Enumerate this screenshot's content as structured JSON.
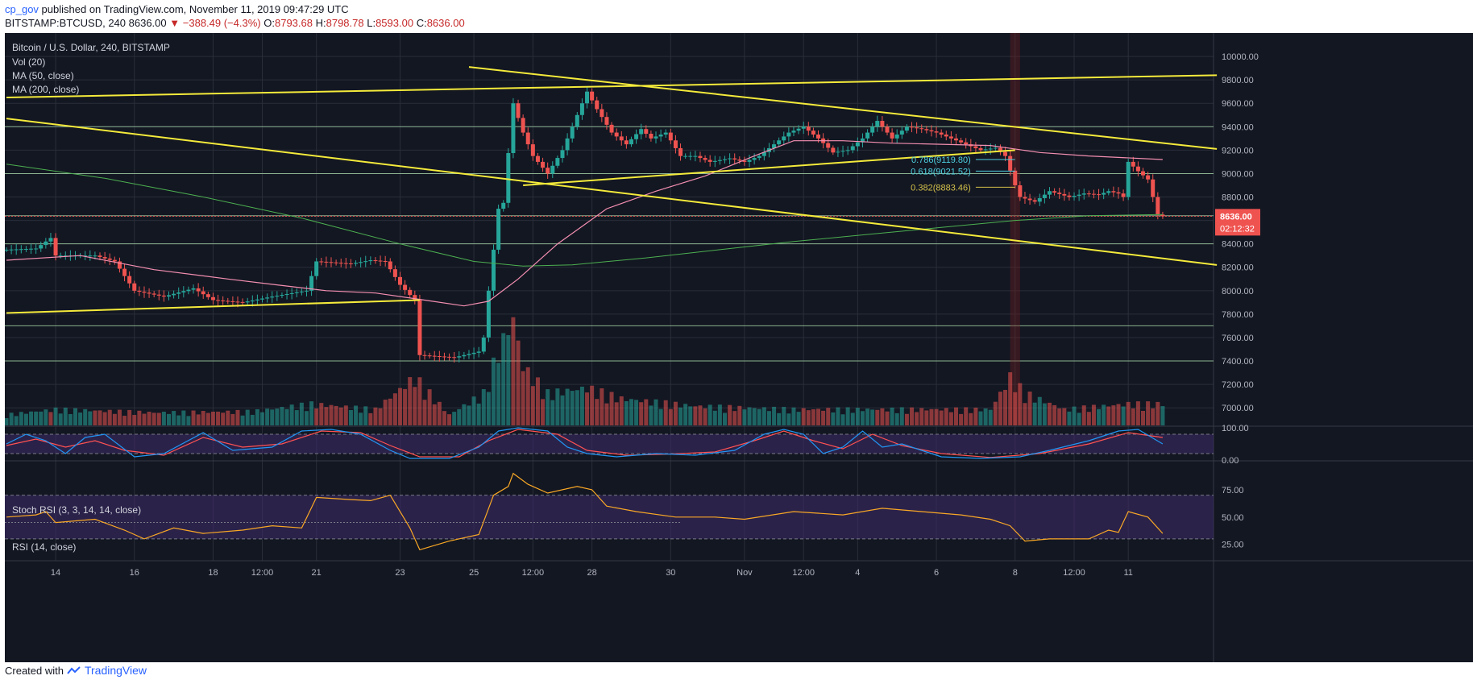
{
  "header": {
    "user": "cp_gov",
    "published": "published on TradingView.com, November 11, 2019 09:47:29 UTC"
  },
  "quote": {
    "symbol": "BITSTAMP:BTCUSD, 240",
    "last": "8636.00",
    "arrow": "▼",
    "change": "−388.49 (−4.3%)",
    "o_label": "O:",
    "o": "8793.68",
    "h_label": "H:",
    "h": "8798.78",
    "l_label": "L:",
    "l": "8593.00",
    "c_label": "C:",
    "c": "8636.00"
  },
  "legend": {
    "title": "Bitcoin / U.S. Dollar, 240, BITSTAMP",
    "vol": "Vol (20)",
    "ma50": "MA (50, close)",
    "ma200": "MA (200, close)",
    "stoch": "Stoch RSI (3, 3, 14, 14, close)",
    "rsi": "RSI (14, close)"
  },
  "price_badge": {
    "price": "8636.00",
    "countdown": "02:12:32"
  },
  "footer": {
    "created": "Created with",
    "brand": "TradingView"
  },
  "colors": {
    "bg": "#131722",
    "grid": "#2a2e39",
    "up": "#26a69a",
    "down": "#ef5350",
    "trend": "#f5eb3b",
    "hline": "#a5d6a7",
    "ma50": "#f48fb1",
    "ma200": "#4caf50",
    "rsi": "#f9a825",
    "stoch_k": "#2196f3",
    "stoch_d": "#ff5252",
    "band": "#3c2a66"
  },
  "chart_data": {
    "type": "candlestick",
    "title": "Bitcoin / U.S. Dollar, 240, BITSTAMP",
    "ylim": [
      6850,
      10200
    ],
    "y_ticks": [
      10000,
      9800,
      9600,
      9400,
      9200,
      9000,
      8800,
      8600,
      8400,
      8200,
      8000,
      7800,
      7600,
      7400,
      7200,
      7000
    ],
    "y_tick_labels": [
      "10000.00",
      "9800.00",
      "9600.00",
      "9400.00",
      "9200.00",
      "9000.00",
      "8800.00",
      "8600.00",
      "8400.00",
      "8200.00",
      "8000.00",
      "7800.00",
      "7600.00",
      "7400.00",
      "7200.00",
      "7000.00"
    ],
    "bars": 246,
    "x_ticks": [
      {
        "bar": 10,
        "label": "14"
      },
      {
        "bar": 26,
        "label": "16"
      },
      {
        "bar": 42,
        "label": "18"
      },
      {
        "bar": 52,
        "label": "12:00"
      },
      {
        "bar": 63,
        "label": "21"
      },
      {
        "bar": 80,
        "label": "23"
      },
      {
        "bar": 95,
        "label": "25"
      },
      {
        "bar": 107,
        "label": "12:00"
      },
      {
        "bar": 119,
        "label": "28"
      },
      {
        "bar": 135,
        "label": "30"
      },
      {
        "bar": 150,
        "label": "Nov"
      },
      {
        "bar": 162,
        "label": "12:00"
      },
      {
        "bar": 173,
        "label": "4"
      },
      {
        "bar": 189,
        "label": "6"
      },
      {
        "bar": 205,
        "label": "8"
      },
      {
        "bar": 217,
        "label": "12:00"
      },
      {
        "bar": 228,
        "label": "11"
      }
    ],
    "close_path": [
      [
        0,
        8350
      ],
      [
        6,
        8360
      ],
      [
        9,
        8450
      ],
      [
        10,
        8300
      ],
      [
        18,
        8300
      ],
      [
        22,
        8250
      ],
      [
        26,
        8000
      ],
      [
        32,
        7950
      ],
      [
        38,
        8020
      ],
      [
        42,
        7920
      ],
      [
        48,
        7900
      ],
      [
        54,
        7950
      ],
      [
        61,
        8000
      ],
      [
        63,
        8250
      ],
      [
        70,
        8230
      ],
      [
        74,
        8260
      ],
      [
        77,
        8250
      ],
      [
        80,
        8050
      ],
      [
        83,
        7920
      ],
      [
        84,
        7450
      ],
      [
        91,
        7430
      ],
      [
        96,
        7480
      ],
      [
        97,
        7600
      ],
      [
        98,
        8000
      ],
      [
        100,
        8700
      ],
      [
        101,
        8750
      ],
      [
        103,
        9600
      ],
      [
        105,
        9350
      ],
      [
        107,
        9150
      ],
      [
        110,
        9000
      ],
      [
        113,
        9200
      ],
      [
        116,
        9500
      ],
      [
        118,
        9700
      ],
      [
        120,
        9550
      ],
      [
        123,
        9350
      ],
      [
        126,
        9250
      ],
      [
        129,
        9380
      ],
      [
        131,
        9300
      ],
      [
        134,
        9350
      ],
      [
        137,
        9150
      ],
      [
        140,
        9150
      ],
      [
        143,
        9100
      ],
      [
        147,
        9130
      ],
      [
        150,
        9100
      ],
      [
        153,
        9150
      ],
      [
        156,
        9250
      ],
      [
        159,
        9350
      ],
      [
        162,
        9400
      ],
      [
        165,
        9300
      ],
      [
        168,
        9180
      ],
      [
        171,
        9200
      ],
      [
        174,
        9300
      ],
      [
        177,
        9450
      ],
      [
        180,
        9300
      ],
      [
        183,
        9400
      ],
      [
        186,
        9380
      ],
      [
        189,
        9350
      ],
      [
        192,
        9300
      ],
      [
        195,
        9250
      ],
      [
        198,
        9200
      ],
      [
        201,
        9220
      ],
      [
        203,
        9150
      ],
      [
        205,
        8900
      ],
      [
        206,
        8800
      ],
      [
        209,
        8760
      ],
      [
        212,
        8850
      ],
      [
        216,
        8800
      ],
      [
        219,
        8830
      ],
      [
        222,
        8820
      ],
      [
        224,
        8850
      ],
      [
        226,
        8830
      ],
      [
        227,
        8800
      ],
      [
        228,
        9100
      ],
      [
        230,
        9020
      ],
      [
        232,
        8950
      ],
      [
        234,
        8650
      ],
      [
        235,
        8636
      ]
    ],
    "ma50": [
      [
        0,
        8260
      ],
      [
        15,
        8300
      ],
      [
        30,
        8180
      ],
      [
        45,
        8100
      ],
      [
        55,
        8050
      ],
      [
        65,
        8000
      ],
      [
        75,
        7980
      ],
      [
        85,
        7920
      ],
      [
        93,
        7870
      ],
      [
        98,
        7910
      ],
      [
        104,
        8100
      ],
      [
        112,
        8400
      ],
      [
        122,
        8700
      ],
      [
        132,
        8850
      ],
      [
        142,
        8980
      ],
      [
        152,
        9150
      ],
      [
        160,
        9280
      ],
      [
        170,
        9280
      ],
      [
        180,
        9260
      ],
      [
        190,
        9250
      ],
      [
        200,
        9240
      ],
      [
        210,
        9180
      ],
      [
        220,
        9150
      ],
      [
        235,
        9120
      ]
    ],
    "ma200": [
      [
        0,
        9080
      ],
      [
        20,
        8960
      ],
      [
        40,
        8800
      ],
      [
        60,
        8620
      ],
      [
        80,
        8400
      ],
      [
        95,
        8250
      ],
      [
        105,
        8210
      ],
      [
        115,
        8220
      ],
      [
        130,
        8280
      ],
      [
        145,
        8350
      ],
      [
        160,
        8420
      ],
      [
        175,
        8480
      ],
      [
        190,
        8540
      ],
      [
        205,
        8600
      ],
      [
        220,
        8640
      ],
      [
        235,
        8650
      ]
    ],
    "trendlines": [
      {
        "from": [
          0,
          9650
        ],
        "to": [
          246,
          9840
        ]
      },
      {
        "from": [
          0,
          9470
        ],
        "to": [
          246,
          8220
        ]
      },
      {
        "from": [
          94,
          9910
        ],
        "to": [
          246,
          9210
        ]
      },
      {
        "from": [
          0,
          7810
        ],
        "to": [
          84,
          7920
        ]
      },
      {
        "from": [
          105,
          8900
        ],
        "to": [
          205,
          9200
        ]
      }
    ],
    "horizontal_levels": [
      9400,
      9000,
      8640,
      8400,
      7700,
      7400
    ],
    "fib_levels": [
      {
        "ratio": "0.786",
        "label": "0.786(9119.80)",
        "value": 9119.8
      },
      {
        "ratio": "0.618",
        "label": "0.618(9021.52)",
        "value": 9021.52
      },
      {
        "ratio": "0.382",
        "label": "0.382(8883.46)",
        "value": 8883.46
      }
    ],
    "volume_path": [
      [
        0,
        0.1
      ],
      [
        10,
        0.15
      ],
      [
        30,
        0.12
      ],
      [
        50,
        0.13
      ],
      [
        62,
        0.2
      ],
      [
        75,
        0.15
      ],
      [
        83,
        0.45
      ],
      [
        90,
        0.1
      ],
      [
        97,
        0.3
      ],
      [
        100,
        0.7
      ],
      [
        103,
        1.0
      ],
      [
        105,
        0.55
      ],
      [
        110,
        0.3
      ],
      [
        118,
        0.35
      ],
      [
        125,
        0.25
      ],
      [
        140,
        0.18
      ],
      [
        160,
        0.15
      ],
      [
        180,
        0.15
      ],
      [
        200,
        0.15
      ],
      [
        204,
        0.45
      ],
      [
        207,
        0.3
      ],
      [
        215,
        0.15
      ],
      [
        228,
        0.2
      ],
      [
        235,
        0.2
      ]
    ],
    "stoch_ticks": [
      {
        "value": 100,
        "label": "100.00"
      },
      {
        "value": 0,
        "label": "0.00"
      }
    ],
    "stoch_band": [
      20,
      80
    ],
    "stoch_k": [
      [
        0,
        50
      ],
      [
        4,
        80
      ],
      [
        8,
        60
      ],
      [
        12,
        20
      ],
      [
        16,
        70
      ],
      [
        20,
        80
      ],
      [
        26,
        10
      ],
      [
        32,
        20
      ],
      [
        40,
        85
      ],
      [
        46,
        30
      ],
      [
        54,
        40
      ],
      [
        60,
        90
      ],
      [
        66,
        95
      ],
      [
        72,
        80
      ],
      [
        78,
        30
      ],
      [
        82,
        5
      ],
      [
        90,
        5
      ],
      [
        96,
        40
      ],
      [
        100,
        90
      ],
      [
        104,
        100
      ],
      [
        110,
        90
      ],
      [
        114,
        40
      ],
      [
        118,
        20
      ],
      [
        124,
        10
      ],
      [
        132,
        20
      ],
      [
        140,
        15
      ],
      [
        148,
        30
      ],
      [
        154,
        80
      ],
      [
        158,
        95
      ],
      [
        162,
        80
      ],
      [
        166,
        20
      ],
      [
        170,
        40
      ],
      [
        174,
        90
      ],
      [
        178,
        40
      ],
      [
        182,
        50
      ],
      [
        186,
        30
      ],
      [
        190,
        10
      ],
      [
        198,
        5
      ],
      [
        206,
        10
      ],
      [
        212,
        30
      ],
      [
        220,
        60
      ],
      [
        226,
        90
      ],
      [
        230,
        95
      ],
      [
        235,
        50
      ]
    ],
    "stoch_d": [
      [
        0,
        45
      ],
      [
        6,
        65
      ],
      [
        12,
        40
      ],
      [
        18,
        60
      ],
      [
        24,
        30
      ],
      [
        32,
        15
      ],
      [
        40,
        70
      ],
      [
        48,
        40
      ],
      [
        56,
        50
      ],
      [
        64,
        90
      ],
      [
        72,
        85
      ],
      [
        78,
        45
      ],
      [
        84,
        10
      ],
      [
        92,
        10
      ],
      [
        98,
        60
      ],
      [
        104,
        95
      ],
      [
        112,
        80
      ],
      [
        118,
        30
      ],
      [
        126,
        15
      ],
      [
        134,
        18
      ],
      [
        144,
        25
      ],
      [
        152,
        60
      ],
      [
        158,
        90
      ],
      [
        164,
        60
      ],
      [
        170,
        35
      ],
      [
        176,
        80
      ],
      [
        182,
        45
      ],
      [
        190,
        20
      ],
      [
        200,
        8
      ],
      [
        210,
        20
      ],
      [
        220,
        50
      ],
      [
        228,
        85
      ],
      [
        235,
        70
      ]
    ],
    "rsi_ticks": [
      {
        "value": 75,
        "label": "75.00"
      },
      {
        "value": 50,
        "label": "50.00"
      },
      {
        "value": 25,
        "label": "25.00"
      }
    ],
    "rsi_band": [
      30,
      70
    ],
    "rsi": [
      [
        0,
        50
      ],
      [
        6,
        52
      ],
      [
        8,
        55
      ],
      [
        10,
        45
      ],
      [
        18,
        48
      ],
      [
        24,
        38
      ],
      [
        28,
        30
      ],
      [
        34,
        40
      ],
      [
        40,
        35
      ],
      [
        48,
        38
      ],
      [
        54,
        42
      ],
      [
        60,
        40
      ],
      [
        63,
        68
      ],
      [
        70,
        66
      ],
      [
        74,
        65
      ],
      [
        78,
        70
      ],
      [
        82,
        40
      ],
      [
        84,
        20
      ],
      [
        90,
        28
      ],
      [
        96,
        34
      ],
      [
        99,
        70
      ],
      [
        102,
        78
      ],
      [
        103,
        90
      ],
      [
        106,
        80
      ],
      [
        110,
        72
      ],
      [
        116,
        78
      ],
      [
        119,
        75
      ],
      [
        122,
        60
      ],
      [
        128,
        55
      ],
      [
        136,
        50
      ],
      [
        144,
        50
      ],
      [
        150,
        48
      ],
      [
        160,
        55
      ],
      [
        170,
        52
      ],
      [
        178,
        58
      ],
      [
        186,
        55
      ],
      [
        194,
        52
      ],
      [
        200,
        48
      ],
      [
        204,
        42
      ],
      [
        207,
        28
      ],
      [
        212,
        30
      ],
      [
        220,
        30
      ],
      [
        224,
        38
      ],
      [
        226,
        36
      ],
      [
        228,
        55
      ],
      [
        232,
        50
      ],
      [
        235,
        35
      ]
    ]
  }
}
